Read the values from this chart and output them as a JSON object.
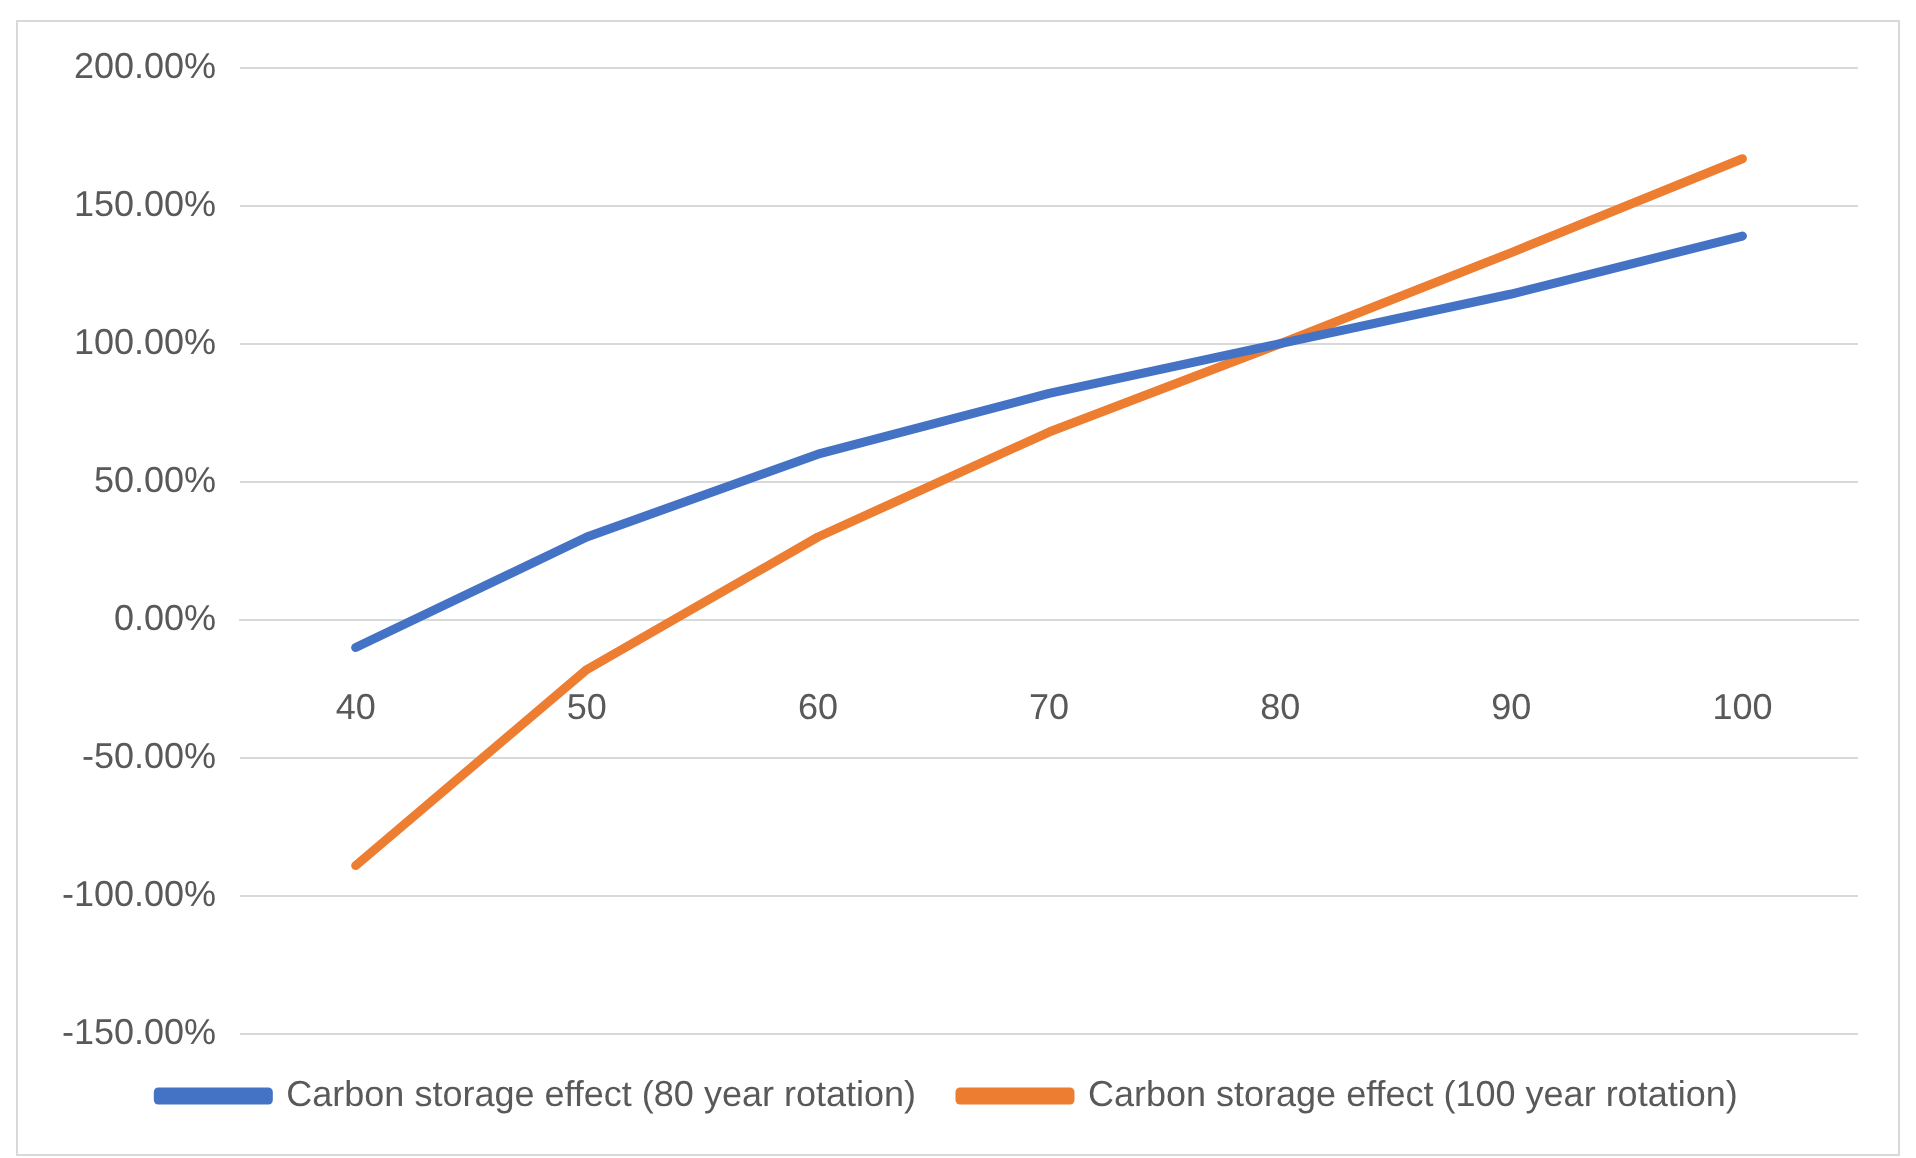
{
  "chart_data": {
    "type": "line",
    "categories": [
      "40",
      "50",
      "60",
      "70",
      "80",
      "90",
      "100"
    ],
    "series": [
      {
        "name": "Carbon storage effect (80 year rotation)",
        "color": "#4472c4",
        "values": [
          -10,
          30,
          60,
          82,
          100,
          118,
          139
        ]
      },
      {
        "name": "Carbon storage effect (100 year rotation)",
        "color": "#ed7d31",
        "values": [
          -89,
          -18,
          30,
          68,
          100,
          133,
          167
        ]
      }
    ],
    "ylim": [
      -150,
      200
    ],
    "yticks": [
      {
        "value": -150,
        "label": "-150.00%"
      },
      {
        "value": -100,
        "label": "-100.00%"
      },
      {
        "value": -50,
        "label": "-50.00%"
      },
      {
        "value": 0,
        "label": "0.00%"
      },
      {
        "value": 50,
        "label": "50.00%"
      },
      {
        "value": 100,
        "label": "100.00%"
      },
      {
        "value": 150,
        "label": "150.00%"
      },
      {
        "value": 200,
        "label": "200.00%"
      }
    ],
    "grid": "y",
    "legend": "bottom",
    "marker": "none",
    "line_style": "solid"
  }
}
